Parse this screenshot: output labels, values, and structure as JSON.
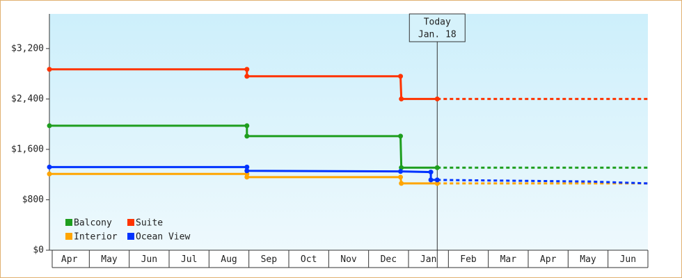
{
  "chart_data": {
    "type": "step-line",
    "xlim": [
      0,
      15
    ],
    "ylim": [
      0,
      3750
    ],
    "yticks": [
      {
        "value": 0,
        "label": "$0"
      },
      {
        "value": 800,
        "label": "$800"
      },
      {
        "value": 1600,
        "label": "$1,600"
      },
      {
        "value": 2400,
        "label": "$2,400"
      },
      {
        "value": 3200,
        "label": "$3,200"
      }
    ],
    "xticks": [
      {
        "value": 0.5,
        "label": "Apr"
      },
      {
        "value": 1.5,
        "label": "May"
      },
      {
        "value": 2.5,
        "label": "Jun"
      },
      {
        "value": 3.5,
        "label": "Jul"
      },
      {
        "value": 4.5,
        "label": "Aug"
      },
      {
        "value": 5.5,
        "label": "Sep"
      },
      {
        "value": 6.5,
        "label": "Oct"
      },
      {
        "value": 7.5,
        "label": "Nov"
      },
      {
        "value": 8.5,
        "label": "Dec"
      },
      {
        "value": 9.5,
        "label": "Jan"
      },
      {
        "value": 10.5,
        "label": "Feb"
      },
      {
        "value": 11.5,
        "label": "Mar"
      },
      {
        "value": 12.5,
        "label": "Apr"
      },
      {
        "value": 13.5,
        "label": "May"
      },
      {
        "value": 14.5,
        "label": "Jun"
      }
    ],
    "today": {
      "x": 9.72,
      "label": "Today",
      "date": "Jan. 18"
    },
    "legend": "bottom-left",
    "series": [
      {
        "name": "Balcony",
        "color": "#1e9e1e",
        "x": [
          0,
          4.95,
          4.95,
          8.8,
          8.82,
          9.72
        ],
        "values": [
          1975,
          1975,
          1810,
          1810,
          1310,
          1310
        ],
        "forecast_x": [
          9.72,
          15
        ],
        "forecast_values": [
          1310,
          1310
        ]
      },
      {
        "name": "Suite",
        "color": "#ff3300",
        "x": [
          0,
          4.95,
          4.95,
          8.8,
          8.82,
          9.72
        ],
        "values": [
          2870,
          2870,
          2760,
          2760,
          2400,
          2400
        ],
        "forecast_x": [
          9.72,
          15
        ],
        "forecast_values": [
          2400,
          2400
        ]
      },
      {
        "name": "Interior",
        "color": "#ffa500",
        "x": [
          0,
          4.95,
          4.95,
          8.8,
          8.82,
          9.72
        ],
        "values": [
          1210,
          1210,
          1160,
          1160,
          1060,
          1060
        ],
        "forecast_x": [
          9.72,
          15
        ],
        "forecast_values": [
          1060,
          1060
        ]
      },
      {
        "name": "Ocean View",
        "color": "#0033ff",
        "x": [
          0,
          4.95,
          4.95,
          8.8,
          9.56,
          9.56,
          9.72
        ],
        "values": [
          1320,
          1320,
          1260,
          1250,
          1240,
          1115,
          1115
        ],
        "forecast_x": [
          9.72,
          12,
          13.5,
          15
        ],
        "forecast_values": [
          1115,
          1100,
          1090,
          1060
        ]
      }
    ]
  }
}
